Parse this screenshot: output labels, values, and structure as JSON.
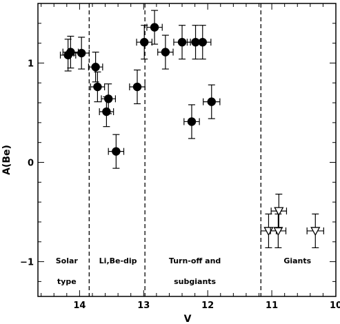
{
  "chart_data": {
    "type": "scatter",
    "xlabel": "V",
    "ylabel": "A(Be)",
    "xlim": [
      14.65,
      10.0
    ],
    "ylim": [
      -1.35,
      1.6
    ],
    "x_reversed": true,
    "grid": false,
    "xticks": [
      14,
      13,
      12,
      11,
      10
    ],
    "xtick_labels": [
      "14",
      "13",
      "12",
      "11",
      "10"
    ],
    "yticks": [
      1,
      0,
      -1
    ],
    "ytick_labels": [
      "1",
      "0",
      "−1"
    ],
    "dividers": [
      13.85,
      12.98,
      11.17
    ],
    "region_labels": [
      {
        "lines": [
          "Solar",
          "type"
        ],
        "x": 14.2
      },
      {
        "lines": [
          "Li,Be-dip"
        ],
        "x": 13.4
      },
      {
        "lines": [
          "Turn-off and",
          "subgiants"
        ],
        "x": 12.2
      },
      {
        "lines": [
          "Giants"
        ],
        "x": 10.6
      }
    ],
    "series": [
      {
        "marker": "filled-circle",
        "points": [
          {
            "x": 14.18,
            "y": 1.08,
            "xerr": 0.12,
            "yerr": 0.16
          },
          {
            "x": 14.14,
            "y": 1.11,
            "xerr": 0.12,
            "yerr": 0.16
          },
          {
            "x": 13.97,
            "y": 1.1,
            "xerr": 0.12,
            "yerr": 0.16
          },
          {
            "x": 13.75,
            "y": 0.96,
            "xerr": 0.11,
            "yerr": 0.15
          },
          {
            "x": 13.72,
            "y": 0.76,
            "xerr": 0.11,
            "yerr": 0.15
          },
          {
            "x": 13.55,
            "y": 0.64,
            "xerr": 0.11,
            "yerr": 0.15
          },
          {
            "x": 13.58,
            "y": 0.51,
            "xerr": 0.11,
            "yerr": 0.15
          },
          {
            "x": 13.43,
            "y": 0.11,
            "xerr": 0.12,
            "yerr": 0.17
          },
          {
            "x": 13.1,
            "y": 0.76,
            "xerr": 0.12,
            "yerr": 0.17
          },
          {
            "x": 12.99,
            "y": 1.21,
            "xerr": 0.12,
            "yerr": 0.17
          },
          {
            "x": 12.83,
            "y": 1.36,
            "xerr": 0.12,
            "yerr": 0.17
          },
          {
            "x": 12.66,
            "y": 1.11,
            "xerr": 0.12,
            "yerr": 0.17
          },
          {
            "x": 12.4,
            "y": 1.21,
            "xerr": 0.13,
            "yerr": 0.17
          },
          {
            "x": 12.19,
            "y": 1.21,
            "xerr": 0.13,
            "yerr": 0.17
          },
          {
            "x": 12.08,
            "y": 1.21,
            "xerr": 0.13,
            "yerr": 0.17
          },
          {
            "x": 12.25,
            "y": 0.41,
            "xerr": 0.12,
            "yerr": 0.17
          },
          {
            "x": 11.94,
            "y": 0.61,
            "xerr": 0.13,
            "yerr": 0.17
          }
        ]
      },
      {
        "marker": "open-triangle-down",
        "points": [
          {
            "x": 11.05,
            "y": -0.69,
            "xerr": 0.12,
            "yerr": 0.17
          },
          {
            "x": 10.9,
            "y": -0.69,
            "xerr": 0.12,
            "yerr": 0.17
          },
          {
            "x": 10.89,
            "y": -0.49,
            "xerr": 0.12,
            "yerr": 0.17
          },
          {
            "x": 10.32,
            "y": -0.69,
            "xerr": 0.13,
            "yerr": 0.17
          }
        ]
      }
    ]
  }
}
